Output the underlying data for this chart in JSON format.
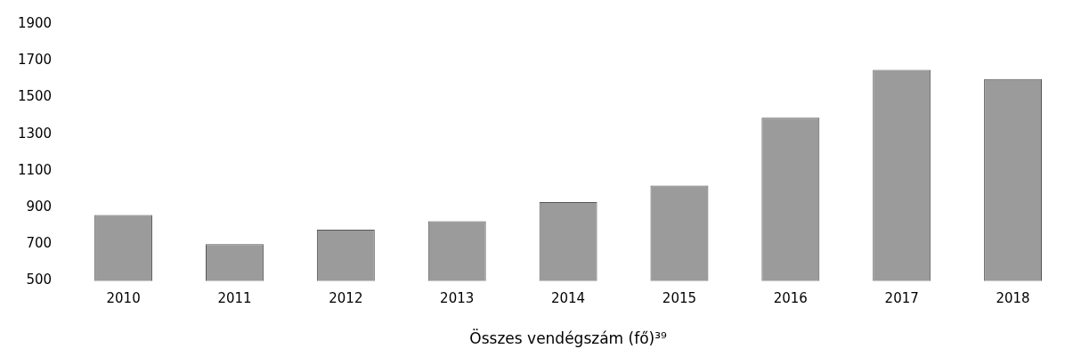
{
  "chart_data": {
    "type": "bar",
    "xlabel": "Összes vendégszám (fő)³⁹",
    "categories": [
      "2010",
      "2011",
      "2012",
      "2013",
      "2014",
      "2015",
      "2016",
      "2017",
      "2018"
    ],
    "values": [
      860,
      700,
      780,
      825,
      930,
      1020,
      1390,
      1650,
      1600
    ],
    "color": "#9b9b9b",
    "ylim": [
      500,
      1900
    ],
    "yticks": [
      500,
      700,
      900,
      1100,
      1300,
      1500,
      1700,
      1900
    ],
    "grid": false,
    "legend": false
  }
}
